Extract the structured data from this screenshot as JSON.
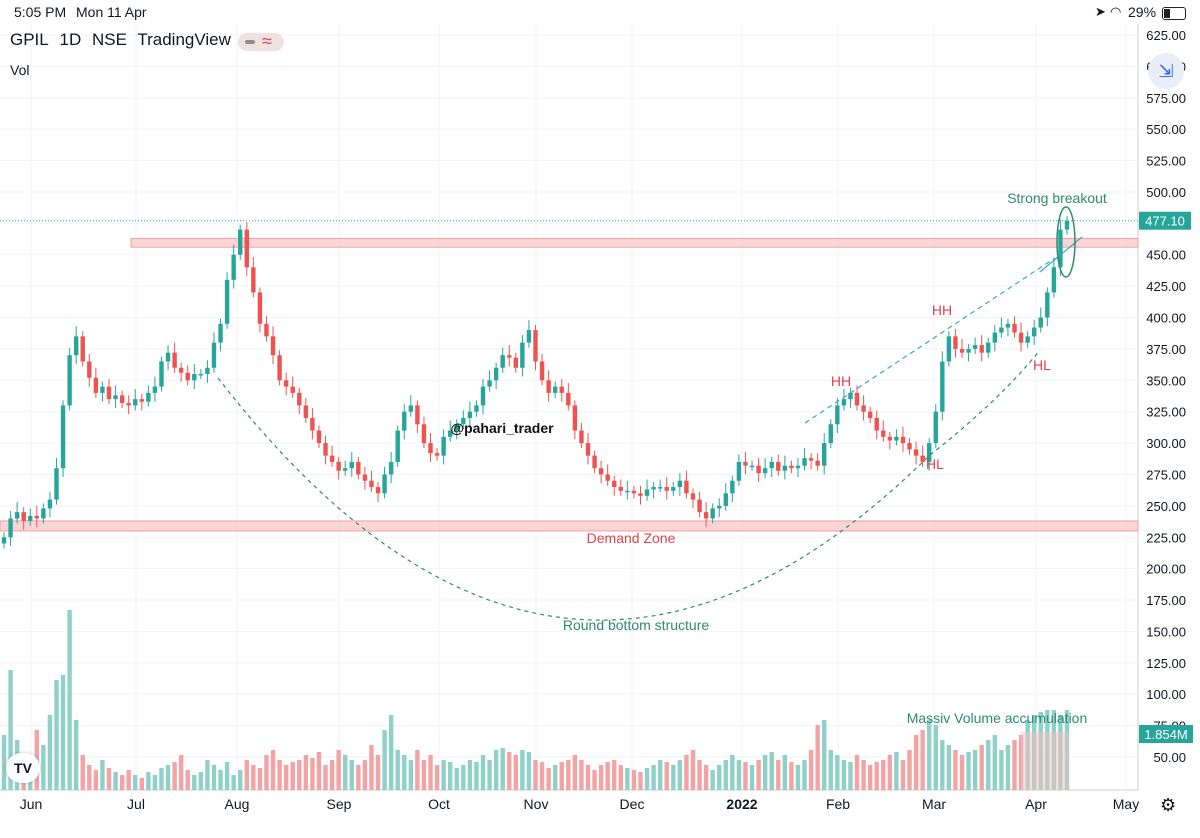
{
  "status_bar": {
    "time": "5:05 PM",
    "date": "Mon 11 Apr",
    "battery": "29%"
  },
  "header": {
    "symbol": "GPIL",
    "interval": "1D",
    "exchange": "NSE",
    "source": "TradingView",
    "volume_label": "Vol"
  },
  "icons": {
    "menu": "pill-toggle-icon",
    "collapse": "shrink-arrows-icon",
    "settings": "gear-icon",
    "logo": "tradingview-logo-icon"
  },
  "colors": {
    "up": "#26a69a",
    "down": "#ef5350",
    "annotation": "#2e8b6e",
    "annotation_red": "#e0434b",
    "zone": "#f8c7c7",
    "dash_blue": "#3aa7c7"
  },
  "chart_data": {
    "type": "candlestick",
    "price_axis": {
      "min": 30,
      "max": 630,
      "ticks": [
        625,
        600,
        575,
        550,
        525,
        500,
        475,
        450,
        425,
        400,
        375,
        350,
        325,
        300,
        275,
        250,
        225,
        200,
        175,
        150,
        125,
        100,
        75,
        50
      ]
    },
    "time_axis": {
      "labels": [
        "Jun",
        "Jul",
        "Aug",
        "Sep",
        "Oct",
        "Nov",
        "Dec",
        "2022",
        "Feb",
        "Mar",
        "Apr",
        "May"
      ]
    },
    "last_price": "477.10",
    "volume_last": "1.854M",
    "watermark": "@pahari_trader",
    "zones": [
      {
        "name": "resistance",
        "from": 456,
        "to": 463
      },
      {
        "name": "demand",
        "from": 230,
        "to": 238
      }
    ],
    "annotations": {
      "demand_zone": "Demand Zone",
      "round_bottom": "Round bottom structure",
      "breakout": "Strong breakout",
      "volume": "Massiv Volume accumulation",
      "hh": "HH",
      "hl": "HL"
    },
    "close_series": [
      225,
      240,
      245,
      238,
      242,
      240,
      248,
      255,
      280,
      330,
      370,
      385,
      365,
      352,
      340,
      345,
      335,
      338,
      332,
      330,
      335,
      333,
      340,
      345,
      365,
      372,
      360,
      356,
      350,
      355,
      355,
      360,
      380,
      395,
      430,
      450,
      470,
      440,
      420,
      395,
      385,
      370,
      350,
      345,
      340,
      330,
      320,
      310,
      300,
      290,
      285,
      278,
      280,
      285,
      275,
      270,
      265,
      260,
      275,
      285,
      310,
      325,
      330,
      315,
      300,
      292,
      290,
      305,
      310,
      315,
      320,
      325,
      330,
      345,
      350,
      360,
      370,
      368,
      360,
      380,
      390,
      365,
      350,
      340,
      345,
      340,
      330,
      310,
      300,
      290,
      280,
      275,
      270,
      265,
      262,
      262,
      260,
      258,
      263,
      265,
      265,
      262,
      265,
      270,
      260,
      255,
      245,
      240,
      248,
      250,
      260,
      270,
      285,
      282,
      282,
      276,
      280,
      285,
      278,
      282,
      280,
      282,
      288,
      286,
      282,
      300,
      315,
      330,
      335,
      340,
      330,
      325,
      320,
      310,
      305,
      302,
      305,
      300,
      295,
      290,
      285,
      300,
      325,
      365,
      385,
      375,
      372,
      375,
      378,
      372,
      380,
      388,
      392,
      395,
      388,
      380,
      385,
      392,
      400,
      420,
      440,
      470,
      477
    ],
    "volume_series": [
      55,
      120,
      50,
      35,
      30,
      60,
      45,
      75,
      110,
      115,
      180,
      70,
      35,
      25,
      20,
      30,
      22,
      18,
      15,
      20,
      15,
      12,
      18,
      15,
      22,
      25,
      28,
      35,
      20,
      15,
      18,
      30,
      25,
      20,
      28,
      15,
      20,
      30,
      25,
      22,
      35,
      40,
      30,
      25,
      28,
      30,
      35,
      32,
      38,
      25,
      30,
      40,
      35,
      30,
      25,
      30,
      45,
      35,
      60,
      75,
      40,
      35,
      30,
      40,
      30,
      35,
      25,
      30,
      28,
      22,
      25,
      30,
      28,
      35,
      30,
      40,
      42,
      38,
      35,
      40,
      38,
      30,
      28,
      22,
      25,
      28,
      30,
      35,
      30,
      25,
      20,
      25,
      28,
      30,
      25,
      22,
      20,
      18,
      22,
      25,
      30,
      28,
      25,
      30,
      35,
      40,
      30,
      25,
      20,
      25,
      30,
      35,
      30,
      28,
      25,
      30,
      35,
      38,
      30,
      35,
      28,
      25,
      30,
      40,
      65,
      70,
      40,
      35,
      30,
      28,
      35,
      30,
      25,
      28,
      30,
      35,
      38,
      30,
      40,
      55,
      60,
      70,
      65,
      50,
      45,
      40,
      35,
      38,
      40,
      45,
      50,
      55,
      40,
      45,
      50,
      55,
      70,
      75,
      78,
      80,
      80,
      75,
      80
    ]
  }
}
